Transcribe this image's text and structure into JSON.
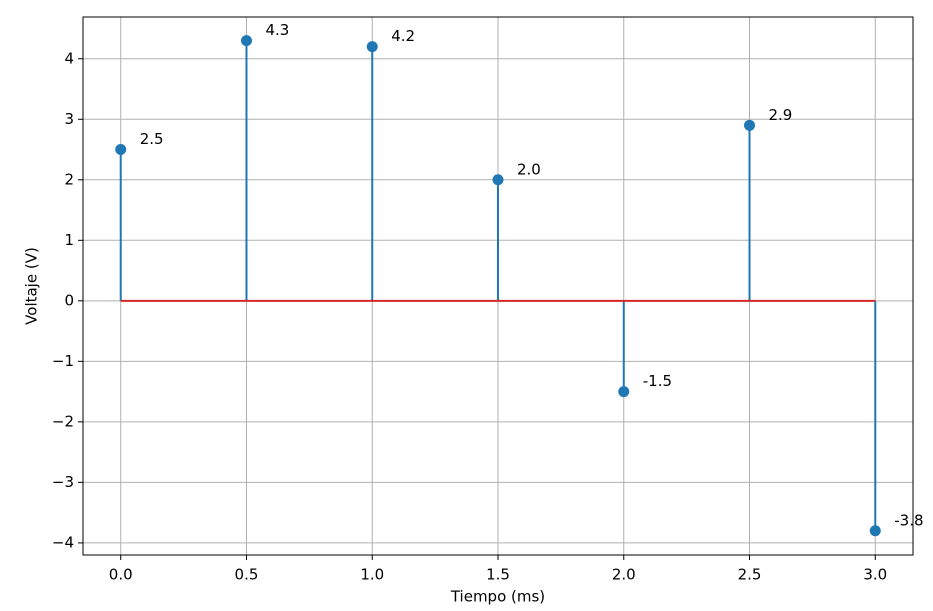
{
  "chart_data": {
    "type": "stem",
    "xlabel": "Tiempo (ms)",
    "ylabel": "Voltaje (V)",
    "x": [
      0,
      0.5,
      1.0,
      1.5,
      2.0,
      2.5,
      3.0
    ],
    "values": [
      2.5,
      4.3,
      4.2,
      2.0,
      -1.5,
      2.9,
      -3.8
    ],
    "value_labels": [
      "2.5",
      "4.3",
      "4.2",
      "2.0",
      "-1.5",
      "2.9",
      "-3.8"
    ],
    "color": "#1f77b4",
    "baseline_color": "#d62728",
    "xlim": [
      -0.15,
      3.15
    ],
    "xticks": [
      {
        "value": 0,
        "label": "0.0"
      },
      {
        "value": 0.5,
        "label": "0.5"
      },
      {
        "value": 1,
        "label": "1.0"
      },
      {
        "value": 1.5,
        "label": "1.5"
      },
      {
        "value": 2,
        "label": "2.0"
      },
      {
        "value": 2.5,
        "label": "2.5"
      },
      {
        "value": 3,
        "label": "3.0"
      }
    ],
    "ylim": [
      -4.2,
      4.69
    ],
    "yticks": [
      {
        "value": -4,
        "label": "−4"
      },
      {
        "value": -3,
        "label": "−3"
      },
      {
        "value": -2,
        "label": "−2"
      },
      {
        "value": -1,
        "label": "−1"
      },
      0,
      1,
      2,
      3,
      4
    ],
    "grid": true
  }
}
